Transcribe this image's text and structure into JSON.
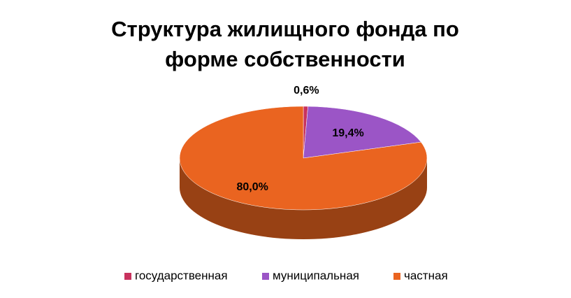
{
  "chart_data": {
    "type": "pie3d",
    "title": "Структура жилищного фонда по форме собственности",
    "categories": [
      "государственная",
      "муниципальная",
      "частная"
    ],
    "values": [
      0.6,
      19.4,
      80.0
    ],
    "value_labels": [
      "0,6%",
      "19,4%",
      "80,0%"
    ],
    "colors": [
      "#c8325e",
      "#9b55c6",
      "#ea6420"
    ],
    "legend": "bottom"
  }
}
